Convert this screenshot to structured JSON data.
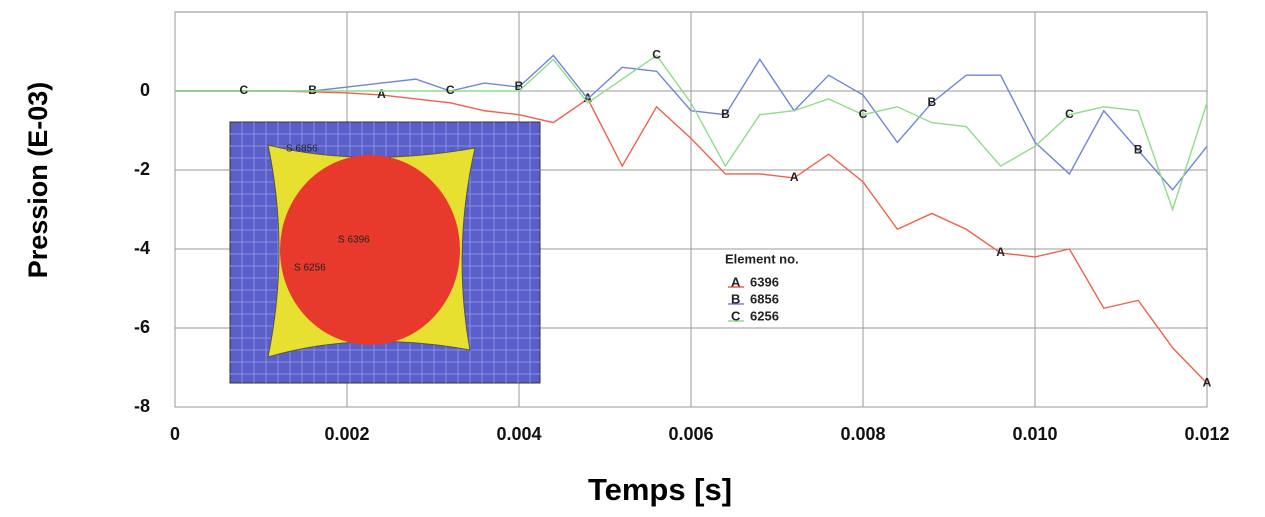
{
  "chart_data": {
    "type": "line",
    "x_label": "Temps [s]",
    "y_label": "Pression (E-03)",
    "x": [
      0,
      0.0004,
      0.0008,
      0.0012,
      0.0016,
      0.002,
      0.0024,
      0.0028,
      0.0032,
      0.0036,
      0.004,
      0.0044,
      0.0048,
      0.0052,
      0.0056,
      0.006,
      0.0064,
      0.0068,
      0.0072,
      0.0076,
      0.008,
      0.0084,
      0.0088,
      0.0092,
      0.0096,
      0.01,
      0.0104,
      0.0108,
      0.0112,
      0.0116,
      0.012
    ],
    "series": [
      {
        "label": "A",
        "name": "6396",
        "color": "#f0604c",
        "values": [
          0,
          0,
          0,
          0,
          -0.02,
          -0.05,
          -0.1,
          -0.2,
          -0.3,
          -0.5,
          -0.6,
          -0.8,
          -0.2,
          -1.9,
          -0.4,
          -1.2,
          -2.1,
          -2.1,
          -2.2,
          -1.6,
          -2.3,
          -3.5,
          -3.1,
          -3.5,
          -4.1,
          -4.2,
          -4.0,
          -5.5,
          -5.3,
          -6.5,
          -7.4
        ]
      },
      {
        "label": "B",
        "name": "6856",
        "color": "#6f86d6",
        "values": [
          0,
          0,
          0,
          0,
          0,
          0.1,
          0.2,
          0.3,
          0.0,
          0.2,
          0.1,
          0.9,
          -0.2,
          0.6,
          0.5,
          -0.5,
          -0.6,
          0.8,
          -0.5,
          0.4,
          -0.1,
          -1.3,
          -0.3,
          0.4,
          0.4,
          -1.3,
          -2.1,
          -0.5,
          -1.5,
          -2.5,
          -1.4
        ]
      },
      {
        "label": "C",
        "name": "6256",
        "color": "#8fdc8a",
        "values": [
          0,
          0,
          0,
          0,
          0,
          0,
          0,
          0,
          0,
          0,
          0,
          0.8,
          -0.3,
          0.3,
          0.9,
          -0.3,
          -1.9,
          -0.6,
          -0.5,
          -0.2,
          -0.6,
          -0.4,
          -0.8,
          -0.9,
          -1.9,
          -1.4,
          -0.6,
          -0.4,
          -0.5,
          -3.0,
          -0.3
        ]
      }
    ],
    "xlim": [
      0,
      0.012
    ],
    "ylim": [
      -8,
      2
    ],
    "xticks": [
      0,
      0.002,
      0.004,
      0.006,
      0.008,
      {
        "value": 0.01,
        "label": "0.010"
      },
      0.012
    ],
    "yticks": [
      -8,
      -6,
      -4,
      -2,
      0
    ],
    "grid": true,
    "legend_title": "Element no.",
    "inset_labels": [
      "S 6856",
      "S 6396",
      "S 6256"
    ]
  }
}
